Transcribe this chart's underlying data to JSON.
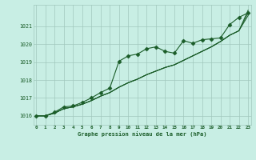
{
  "xlabel": "Graphe pression niveau de la mer (hPa)",
  "x": [
    0,
    1,
    2,
    3,
    4,
    5,
    6,
    7,
    8,
    9,
    10,
    11,
    12,
    13,
    14,
    15,
    16,
    17,
    18,
    19,
    20,
    21,
    22,
    23
  ],
  "line_marked": [
    1016.0,
    1016.0,
    1016.2,
    1016.5,
    1016.55,
    1016.75,
    1017.0,
    1017.3,
    1017.55,
    1019.05,
    1019.35,
    1019.45,
    1019.75,
    1019.85,
    1019.6,
    1019.5,
    1020.2,
    1020.05,
    1020.25,
    1020.3,
    1020.35,
    1021.1,
    1021.5,
    1021.75
  ],
  "line_a": [
    1016.0,
    1016.0,
    1016.15,
    1016.4,
    1016.5,
    1016.65,
    1016.85,
    1017.1,
    1017.3,
    1017.6,
    1017.85,
    1018.05,
    1018.3,
    1018.5,
    1018.7,
    1018.85,
    1019.1,
    1019.35,
    1019.6,
    1019.85,
    1020.15,
    1020.5,
    1020.75,
    1021.9
  ],
  "line_b": [
    1016.0,
    1016.0,
    1016.15,
    1016.4,
    1016.5,
    1016.65,
    1016.85,
    1017.1,
    1017.3,
    1017.6,
    1017.85,
    1018.05,
    1018.3,
    1018.5,
    1018.7,
    1018.85,
    1019.1,
    1019.35,
    1019.6,
    1019.85,
    1020.15,
    1020.5,
    1020.75,
    1021.75
  ],
  "line_c": [
    1016.0,
    1016.0,
    1016.15,
    1016.4,
    1016.5,
    1016.65,
    1016.85,
    1017.1,
    1017.3,
    1017.6,
    1017.85,
    1018.05,
    1018.3,
    1018.5,
    1018.7,
    1018.85,
    1019.1,
    1019.35,
    1019.6,
    1019.85,
    1020.15,
    1020.5,
    1020.75,
    1021.6
  ],
  "bg_color": "#c8eee4",
  "grid_color": "#a0c8bc",
  "line_color": "#1a5c28",
  "ylim_min": 1015.5,
  "ylim_max": 1022.2,
  "yticks": [
    1016,
    1017,
    1018,
    1019,
    1020,
    1021
  ],
  "xticks": [
    0,
    1,
    2,
    3,
    4,
    5,
    6,
    7,
    8,
    9,
    10,
    11,
    12,
    13,
    14,
    15,
    16,
    17,
    18,
    19,
    20,
    21,
    22,
    23
  ]
}
